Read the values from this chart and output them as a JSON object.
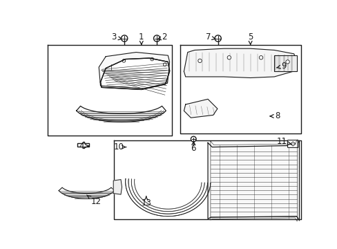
{
  "bg_color": "#ffffff",
  "fig_width": 4.89,
  "fig_height": 3.6,
  "dpi": 100,
  "lc": "#1a1a1a",
  "fs": 8.5
}
